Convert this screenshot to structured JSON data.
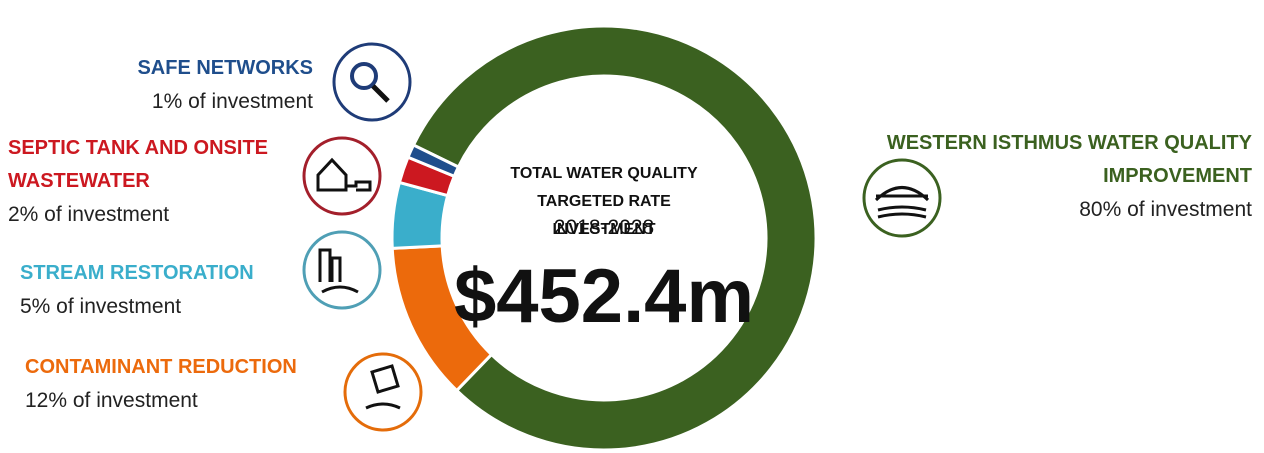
{
  "chart_data": {
    "type": "pie",
    "donut": true,
    "center_text": {
      "heading": "TOTAL WATER QUALITY TARGETED RATE INVESTMENT",
      "period": "2018-2028",
      "total": "$452.4m"
    },
    "categories": [
      "SAFE NETWORKS",
      "SEPTIC TANK AND ONSITE WASTEWATER",
      "STREAM RESTORATION",
      "CONTAMINANT REDUCTION",
      "WESTERN ISTHMUS WATER QUALITY IMPROVEMENT"
    ],
    "values": [
      1,
      2,
      5,
      12,
      80
    ],
    "value_labels": [
      "1% of investment",
      "2% of investment",
      "5% of investment",
      "12% of investment",
      "80% of investment"
    ],
    "colors": [
      "#1f4e8c",
      "#cc1820",
      "#3aaecb",
      "#ec6a0c",
      "#3b6120"
    ]
  }
}
